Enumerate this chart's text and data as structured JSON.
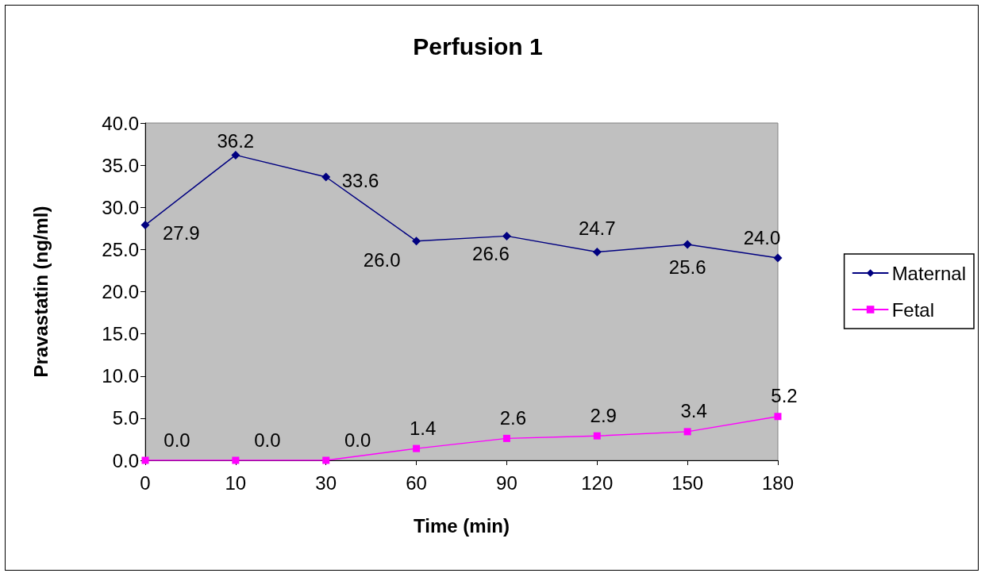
{
  "chart_data": {
    "type": "line",
    "title": "Perfusion 1",
    "xlabel": "Time (min)",
    "ylabel": "Pravastatin (ng/ml)",
    "categories": [
      "0",
      "10",
      "30",
      "60",
      "90",
      "120",
      "150",
      "180"
    ],
    "series": [
      {
        "name": "Maternal",
        "color": "#000080",
        "marker": "diamond",
        "values": [
          27.9,
          36.2,
          33.6,
          26.0,
          26.6,
          24.7,
          25.6,
          24.0
        ],
        "value_labels": [
          "27.9",
          "36.2",
          "33.6",
          "26.0",
          "26.6",
          "24.7",
          "25.6",
          "24.0"
        ]
      },
      {
        "name": "Fetal",
        "color": "#ff00ff",
        "marker": "square",
        "values": [
          0.0,
          0.0,
          0.0,
          1.4,
          2.6,
          2.9,
          3.4,
          5.2
        ],
        "value_labels": [
          "0.0",
          "0.0",
          "0.0",
          "1.4",
          "2.6",
          "2.9",
          "3.4",
          "5.2"
        ]
      }
    ],
    "ylim": [
      0,
      40
    ],
    "yticks": [
      {
        "value": 0,
        "label": "0.0"
      },
      {
        "value": 5,
        "label": "5.0"
      },
      {
        "value": 10,
        "label": "10.0"
      },
      {
        "value": 15,
        "label": "15.0"
      },
      {
        "value": 20,
        "label": "20.0"
      },
      {
        "value": 25,
        "label": "25.0"
      },
      {
        "value": 30,
        "label": "30.0"
      },
      {
        "value": 35,
        "label": "35.0"
      },
      {
        "value": 40,
        "label": "40.0"
      }
    ],
    "grid": false,
    "legend": "right",
    "line_style": "solid"
  }
}
